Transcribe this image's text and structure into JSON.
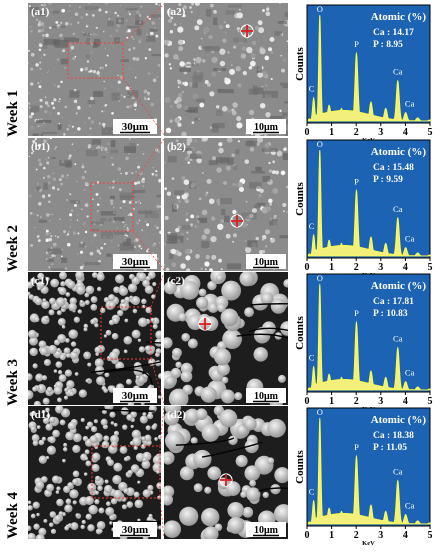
{
  "rows": [
    {
      "week": "Week 1",
      "tag1": "(a1)",
      "tag2": "(a2)",
      "scale1": "30μm",
      "scale2": "10μm",
      "style": "flat",
      "eds": {
        "title": "Atomic (%)",
        "ca": "Ca : 14.17",
        "p": "P : 8.95"
      }
    },
    {
      "week": "Week 2",
      "tag1": "(b1)",
      "tag2": "(b2)",
      "scale1": "30μm",
      "scale2": "10μm",
      "style": "flat",
      "eds": {
        "title": "Atomic (%)",
        "ca": "Ca : 15.48",
        "p": "P : 9.59"
      }
    },
    {
      "week": "Week 3",
      "tag1": "(c1)",
      "tag2": "(c2)",
      "scale1": "30μm",
      "scale2": "10μm",
      "style": "grain",
      "eds": {
        "title": "Atomic (%)",
        "ca": "Ca : 17.81",
        "p": "P : 10.83"
      }
    },
    {
      "week": "Week 4",
      "tag1": "(d1)",
      "tag2": "(d2)",
      "scale1": "30μm",
      "scale2": "10μm",
      "style": "grain",
      "eds": {
        "title": "Atomic (%)",
        "ca": "Ca : 18.38",
        "p": "P : 11.05"
      }
    }
  ],
  "chart_data": {
    "type": "line",
    "xlabel": "KeV",
    "ylabel": "Counts",
    "xlim": [
      0,
      5
    ],
    "x_ticks": [
      0,
      1,
      2,
      3,
      4,
      5
    ],
    "peak_labels": [
      {
        "label": "C",
        "x": 0.27
      },
      {
        "label": "O",
        "x": 0.52
      },
      {
        "label": "P",
        "x": 2.01
      },
      {
        "label": "Ca",
        "x": 3.69
      },
      {
        "label": "Ca",
        "x": 4.01
      }
    ],
    "series": [
      {
        "values": [
          [
            0.1,
            0.02
          ],
          [
            0.27,
            0.22
          ],
          [
            0.52,
            1.0
          ],
          [
            0.9,
            0.15
          ],
          [
            1.4,
            0.12
          ],
          [
            2.01,
            0.64
          ],
          [
            2.6,
            0.18
          ],
          [
            3.2,
            0.12
          ],
          [
            3.69,
            0.38
          ],
          [
            4.01,
            0.08
          ],
          [
            4.5,
            0.03
          ],
          [
            5.0,
            0.01
          ]
        ]
      },
      {
        "values": [
          [
            0.1,
            0.02
          ],
          [
            0.27,
            0.2
          ],
          [
            0.52,
            1.0
          ],
          [
            0.9,
            0.15
          ],
          [
            1.4,
            0.12
          ],
          [
            2.01,
            0.62
          ],
          [
            2.6,
            0.18
          ],
          [
            3.2,
            0.12
          ],
          [
            3.69,
            0.36
          ],
          [
            4.01,
            0.08
          ],
          [
            4.5,
            0.03
          ],
          [
            5.0,
            0.01
          ]
        ]
      },
      {
        "values": [
          [
            0.1,
            0.02
          ],
          [
            0.27,
            0.22
          ],
          [
            0.52,
            1.0
          ],
          [
            0.9,
            0.15
          ],
          [
            1.4,
            0.12
          ],
          [
            2.01,
            0.64
          ],
          [
            2.6,
            0.18
          ],
          [
            3.2,
            0.12
          ],
          [
            3.69,
            0.4
          ],
          [
            4.01,
            0.08
          ],
          [
            4.5,
            0.03
          ],
          [
            5.0,
            0.01
          ]
        ]
      },
      {
        "values": [
          [
            0.1,
            0.02
          ],
          [
            0.27,
            0.22
          ],
          [
            0.52,
            1.0
          ],
          [
            0.9,
            0.15
          ],
          [
            1.4,
            0.12
          ],
          [
            2.01,
            0.64
          ],
          [
            2.6,
            0.18
          ],
          [
            3.2,
            0.12
          ],
          [
            3.69,
            0.41
          ],
          [
            4.01,
            0.09
          ],
          [
            4.5,
            0.03
          ],
          [
            5.0,
            0.01
          ]
        ]
      }
    ]
  },
  "colors": {
    "eds_bg": "#1c63b3",
    "spectrum_fill": "#f2f07a",
    "spectrum_line": "#ffff44",
    "highlight_box": "#ff3b3b"
  }
}
